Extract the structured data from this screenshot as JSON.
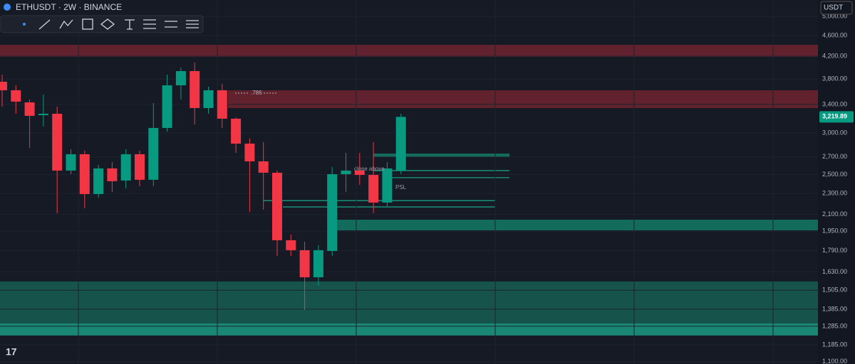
{
  "header": {
    "symbol": "ETHUSDT · 2W · BINANCE",
    "currency_button": "USDT"
  },
  "chart_data": {
    "type": "candlestick",
    "log_scale": true,
    "ylim": [
      1089,
      5376
    ],
    "yticks": [
      {
        "value": 5000,
        "label": "5,000.00"
      },
      {
        "value": 4600,
        "label": "4,600.00"
      },
      {
        "value": 4200,
        "label": "4,200.00"
      },
      {
        "value": 3800,
        "label": "3,800.00"
      },
      {
        "value": 3400,
        "label": "3,400.00"
      },
      {
        "value": 3000,
        "label": "3,000.00"
      },
      {
        "value": 2700,
        "label": "2,700.00"
      },
      {
        "value": 2500,
        "label": "2,500.00"
      },
      {
        "value": 2300,
        "label": "2,300.00"
      },
      {
        "value": 2100,
        "label": "2,100.00"
      },
      {
        "value": 1950,
        "label": "1,950.00"
      },
      {
        "value": 1790,
        "label": "1,790.00"
      },
      {
        "value": 1630,
        "label": "1,630.00"
      },
      {
        "value": 1505,
        "label": "1,505.00"
      },
      {
        "value": 1385,
        "label": "1,385.00"
      },
      {
        "value": 1285,
        "label": "1,285.00"
      },
      {
        "value": 1185,
        "label": "1,185.00"
      },
      {
        "value": 1100,
        "label": "1,100.00"
      }
    ],
    "up_color": "#089981",
    "down_color": "#f23645",
    "open": [
      3756,
      3618,
      3431,
      3244,
      3264,
      2544,
      2733,
      2295,
      2568,
      2435,
      2733,
      2443,
      3067,
      3698,
      3936,
      3347,
      3618,
      3194,
      2863,
      2649,
      2520,
      1874,
      1794,
      1593,
      1788,
      2504,
      2544,
      2496,
      2211,
      2544
    ],
    "high": [
      3875,
      3698,
      3474,
      3551,
      3368,
      2793,
      2776,
      2608,
      2641,
      2793,
      2776,
      3421,
      3875,
      3998,
      4086,
      3675,
      3721,
      3214,
      2927,
      2882,
      2544,
      1921,
      1862,
      1834,
      2584,
      2750,
      2750,
      2882,
      2641,
      3264
    ],
    "low": [
      3368,
      3264,
      2811,
      3086,
      2110,
      2504,
      2156,
      2259,
      2317,
      2353,
      2375,
      2375,
      3019,
      3474,
      3115,
      3264,
      3067,
      2750,
      2123,
      2143,
      1750,
      1750,
      1380,
      1535,
      1750,
      2317,
      2390,
      2110,
      2176,
      2504
    ],
    "close": [
      3618,
      3442,
      3234,
      3264,
      2544,
      2733,
      2295,
      2568,
      2428,
      2733,
      2443,
      3067,
      3698,
      3936,
      3347,
      3618,
      3194,
      2863,
      2649,
      2520,
      1874,
      1794,
      1593,
      1794,
      2504,
      2544,
      2496,
      2211,
      2568,
      3219.89
    ],
    "last_price": {
      "value": 3219.89,
      "label": "3,219.89"
    },
    "zones": [
      {
        "from": 4189,
        "to": 4417,
        "color": "#6e2530"
      },
      {
        "from": 3347,
        "to": 3618,
        "color": "#6e2530"
      },
      {
        "from": 1301,
        "to": 1564,
        "color": "#155e52"
      },
      {
        "from": 1234,
        "to": 1301,
        "color": "#1b9a82"
      },
      {
        "from": 1957,
        "to": 2051,
        "color": "#137a66"
      },
      {
        "from": 2700,
        "to": 2741,
        "color": "#137a66"
      }
    ],
    "levels": [
      2544,
      2466,
      2230,
      2169
    ],
    "annotations": [
      ".786",
      "close above",
      "PSL"
    ]
  }
}
